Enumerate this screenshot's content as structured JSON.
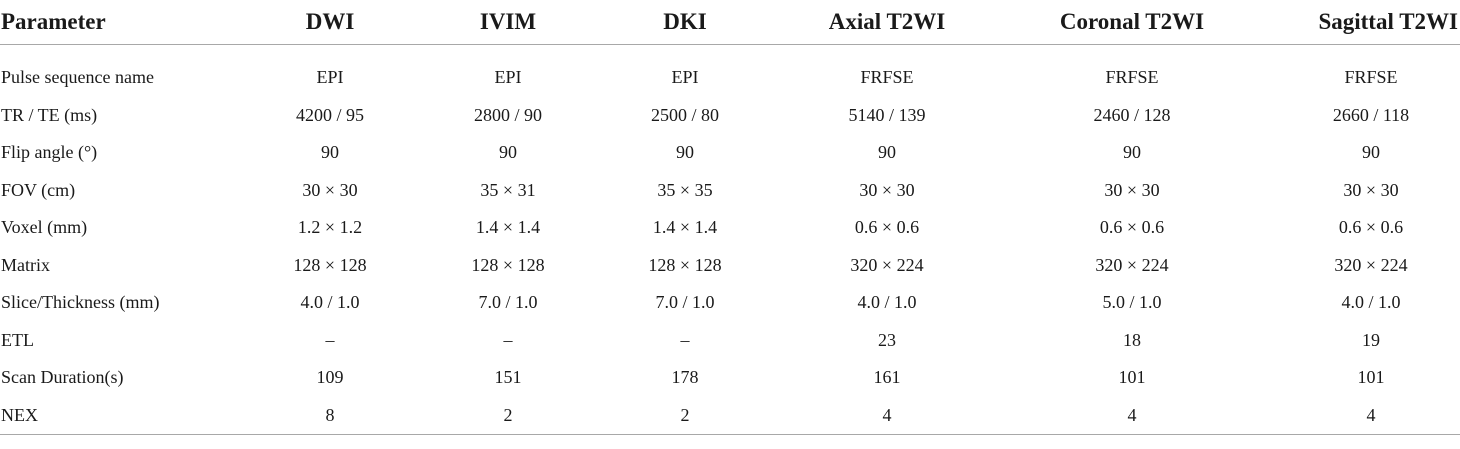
{
  "table": {
    "headers": [
      "Parameter",
      "DWI",
      "IVIM",
      "DKI",
      "Axial T2WI",
      "Coronal T2WI",
      "Sagittal T2WI"
    ],
    "rows": [
      [
        "Pulse sequence name",
        "EPI",
        "EPI",
        "EPI",
        "FRFSE",
        "FRFSE",
        "FRFSE"
      ],
      [
        "TR / TE (ms)",
        "4200 / 95",
        "2800 / 90",
        "2500 / 80",
        "5140 / 139",
        "2460 / 128",
        "2660 / 118"
      ],
      [
        "Flip angle (°)",
        "90",
        "90",
        "90",
        "90",
        "90",
        "90"
      ],
      [
        "FOV (cm)",
        "30 × 30",
        "35 × 31",
        "35 × 35",
        "30 × 30",
        "30 × 30",
        "30 × 30"
      ],
      [
        "Voxel (mm)",
        "1.2 × 1.2",
        "1.4 × 1.4",
        "1.4 × 1.4",
        "0.6 × 0.6",
        "0.6 × 0.6",
        "0.6 × 0.6"
      ],
      [
        "Matrix",
        "128 × 128",
        "128 × 128",
        "128 × 128",
        "320 × 224",
        "320 × 224",
        "320 × 224"
      ],
      [
        "Slice/Thickness (mm)",
        "4.0 / 1.0",
        "7.0 / 1.0",
        "7.0 / 1.0",
        "4.0 / 1.0",
        "5.0 / 1.0",
        "4.0 / 1.0"
      ],
      [
        "ETL",
        "–",
        "–",
        "–",
        "23",
        "18",
        "19"
      ],
      [
        "Scan Duration(s)",
        "109",
        "151",
        "178",
        "161",
        "101",
        "101"
      ],
      [
        "NEX",
        "8",
        "2",
        "2",
        "4",
        "4",
        "4"
      ]
    ]
  }
}
